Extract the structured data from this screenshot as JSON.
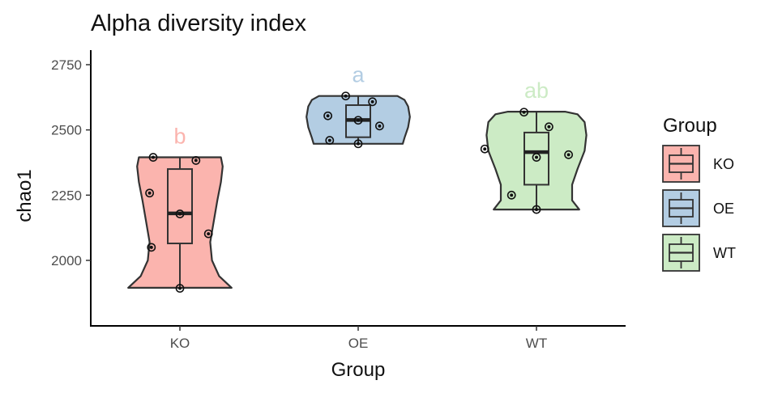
{
  "chart_data": {
    "type": "violin",
    "title": "Alpha diversity index",
    "xlabel": "Group",
    "ylabel": "chao1",
    "ylim": [
      1840,
      2790
    ],
    "yticks": [
      2000,
      2250,
      2500,
      2750
    ],
    "grid": false,
    "legend": {
      "title": "Group",
      "position": "right"
    },
    "groups": [
      {
        "name": "KO",
        "color": "#FBB4AE",
        "significance": "b",
        "min": 1895,
        "q1": 2065,
        "median": 2180,
        "q3": 2350,
        "max": 2395,
        "points": [
          {
            "x_offset": -0.15,
            "y": 2395
          },
          {
            "x_offset": 0.09,
            "y": 2383
          },
          {
            "x_offset": -0.17,
            "y": 2258
          },
          {
            "x_offset": 0.0,
            "y": 2178
          },
          {
            "x_offset": 0.16,
            "y": 2102
          },
          {
            "x_offset": -0.16,
            "y": 2050
          },
          {
            "x_offset": 0.0,
            "y": 1893
          }
        ],
        "violin": [
          [
            1895,
            0.29
          ],
          [
            1940,
            0.22
          ],
          [
            2000,
            0.18
          ],
          [
            2070,
            0.17
          ],
          [
            2150,
            0.19
          ],
          [
            2230,
            0.21
          ],
          [
            2300,
            0.23
          ],
          [
            2360,
            0.24
          ],
          [
            2395,
            0.23
          ]
        ]
      },
      {
        "name": "OE",
        "color": "#B3CDE3",
        "significance": "a",
        "min": 2450,
        "q1": 2472,
        "median": 2538,
        "q3": 2595,
        "max": 2630,
        "points": [
          {
            "x_offset": -0.07,
            "y": 2630
          },
          {
            "x_offset": 0.08,
            "y": 2608
          },
          {
            "x_offset": -0.17,
            "y": 2554
          },
          {
            "x_offset": 0.0,
            "y": 2537
          },
          {
            "x_offset": 0.12,
            "y": 2515
          },
          {
            "x_offset": -0.16,
            "y": 2460
          },
          {
            "x_offset": 0.0,
            "y": 2447
          }
        ],
        "violin": [
          [
            2447,
            0.25
          ],
          [
            2470,
            0.26
          ],
          [
            2510,
            0.28
          ],
          [
            2550,
            0.29
          ],
          [
            2590,
            0.28
          ],
          [
            2615,
            0.26
          ],
          [
            2630,
            0.22
          ]
        ]
      },
      {
        "name": "WT",
        "color": "#CCEBC5",
        "significance": "ab",
        "min": 2195,
        "q1": 2290,
        "median": 2415,
        "q3": 2490,
        "max": 2570,
        "points": [
          {
            "x_offset": -0.07,
            "y": 2568
          },
          {
            "x_offset": 0.07,
            "y": 2512
          },
          {
            "x_offset": -0.29,
            "y": 2427
          },
          {
            "x_offset": 0.0,
            "y": 2395
          },
          {
            "x_offset": 0.18,
            "y": 2405
          },
          {
            "x_offset": -0.14,
            "y": 2250
          },
          {
            "x_offset": 0.0,
            "y": 2195
          }
        ],
        "violin": [
          [
            2195,
            0.24
          ],
          [
            2230,
            0.2
          ],
          [
            2290,
            0.2
          ],
          [
            2350,
            0.23
          ],
          [
            2420,
            0.27
          ],
          [
            2480,
            0.28
          ],
          [
            2530,
            0.27
          ],
          [
            2560,
            0.23
          ],
          [
            2570,
            0.16
          ]
        ]
      }
    ]
  }
}
